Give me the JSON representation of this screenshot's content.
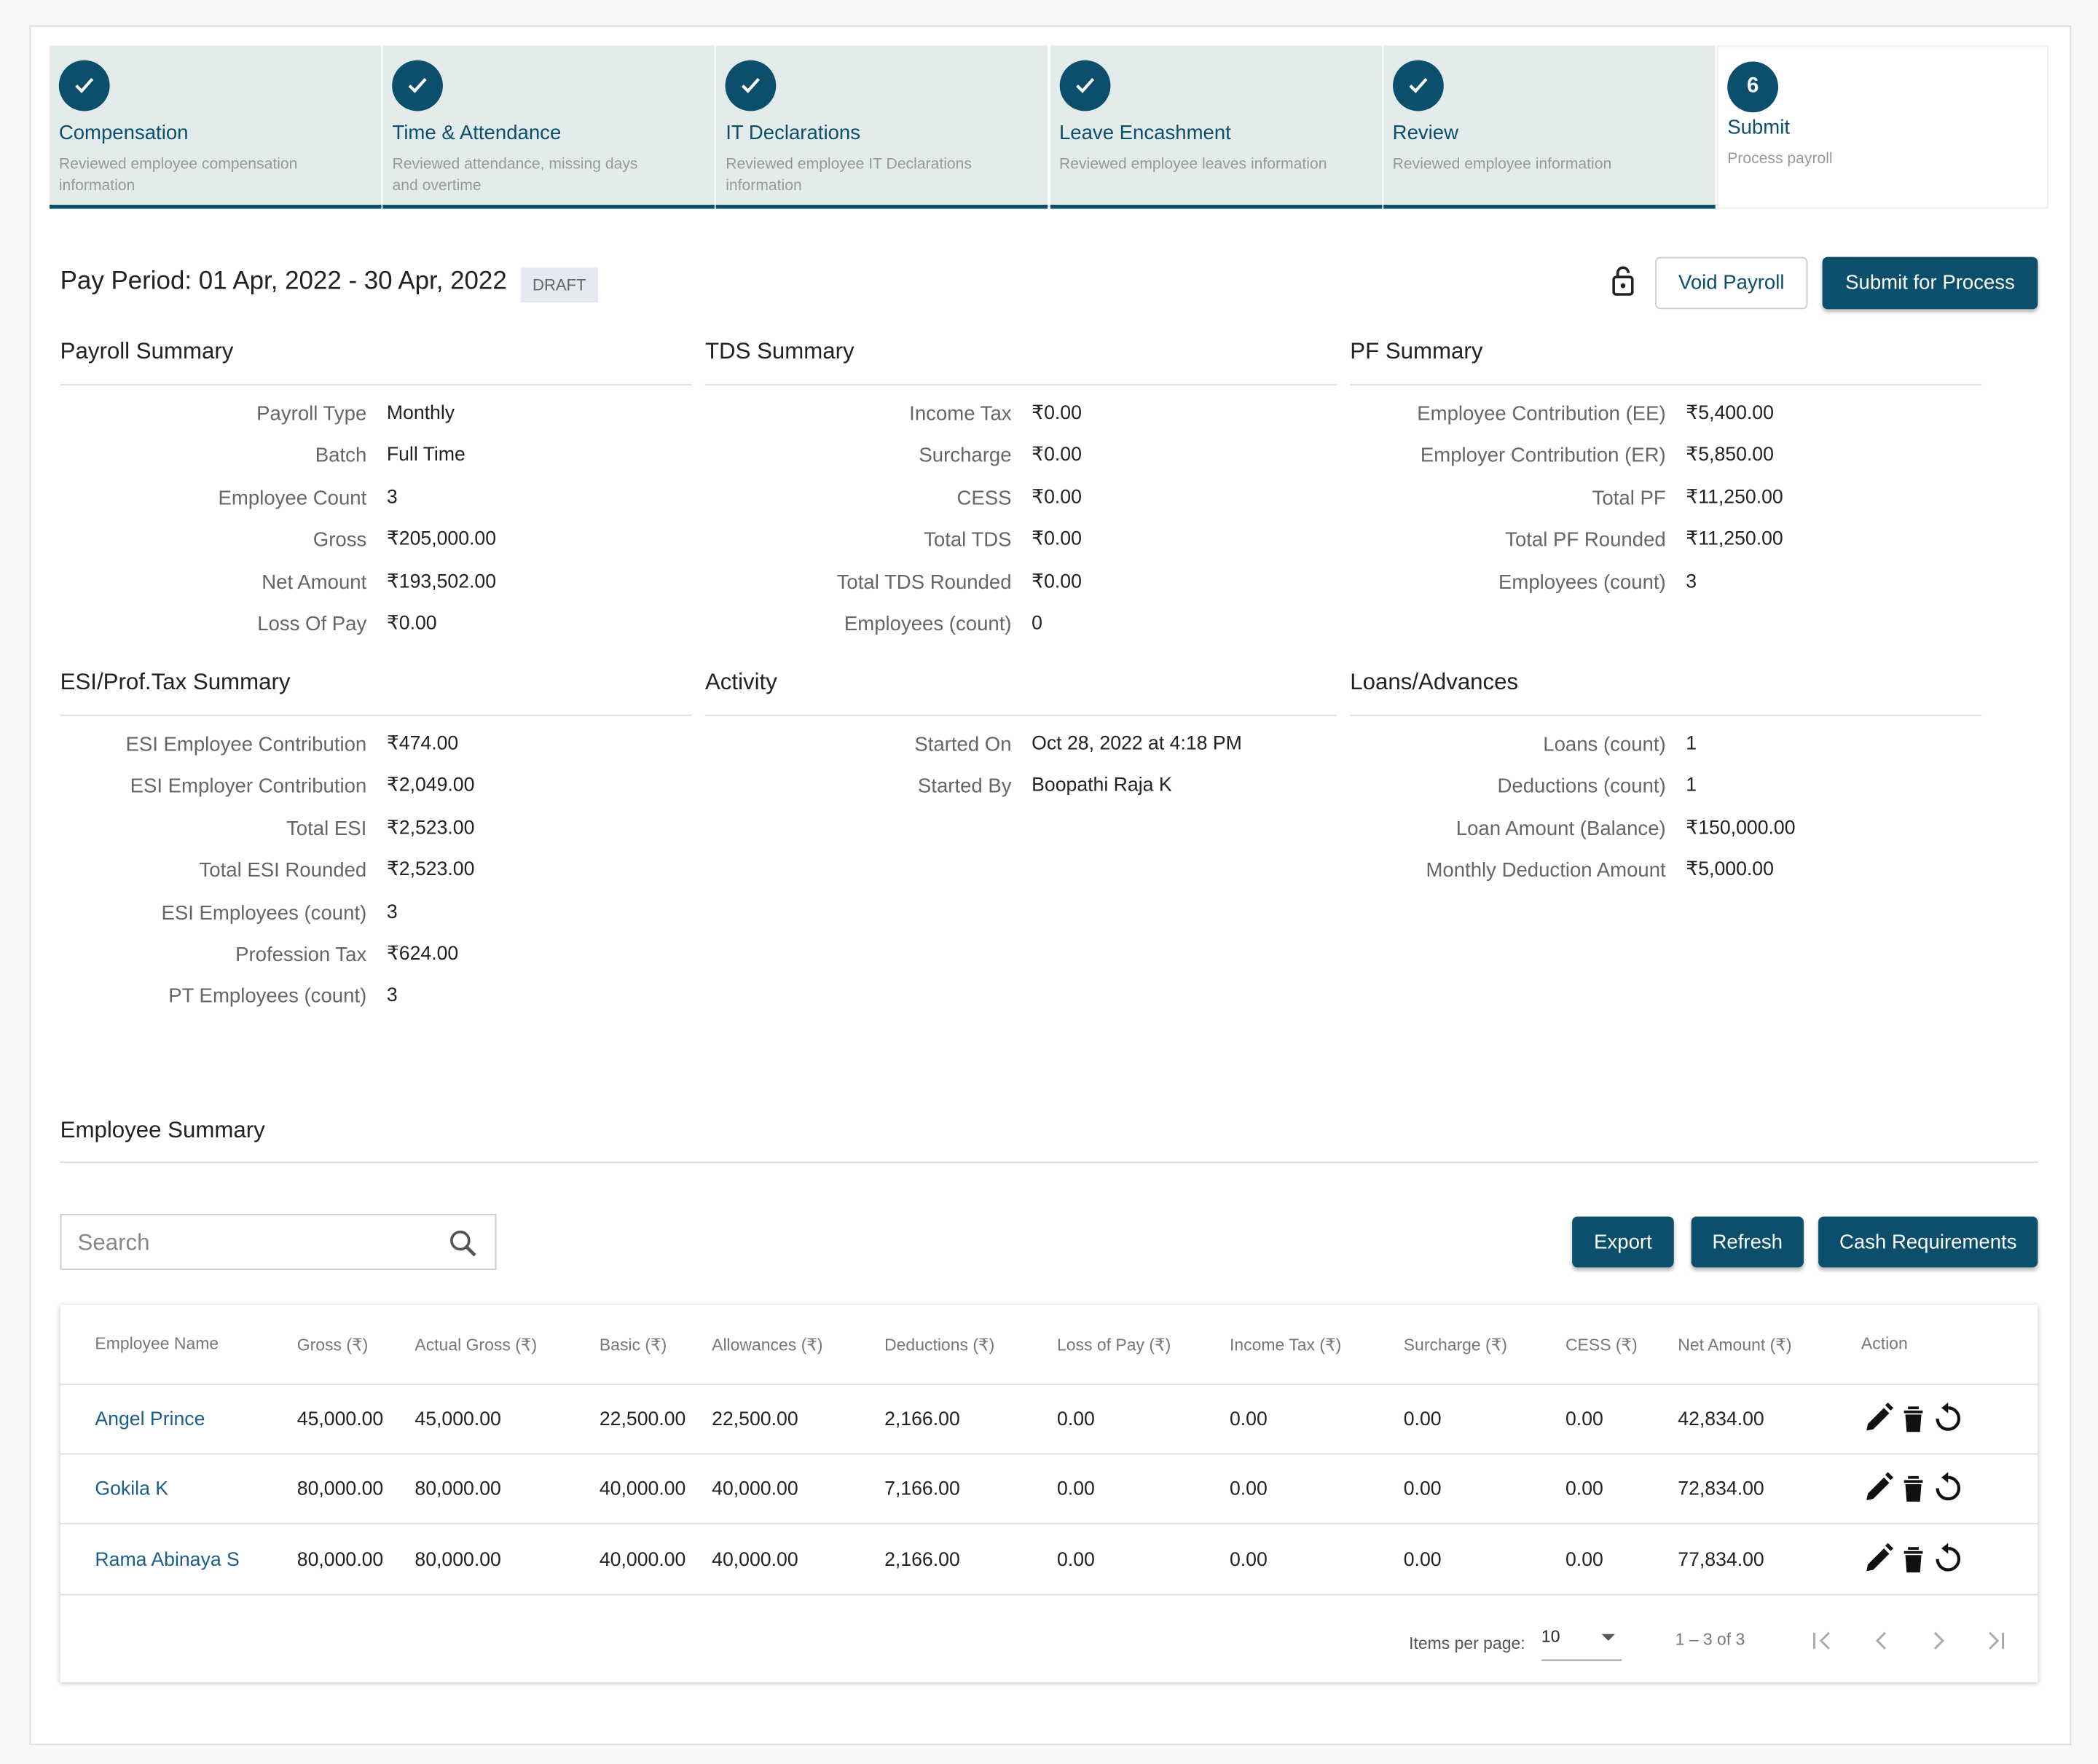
{
  "steps": [
    {
      "label": "Compensation",
      "description": "Reviewed employee compensation information",
      "completed": true
    },
    {
      "label": "Time & Attendance",
      "description": "Reviewed attendance, missing days and overtime",
      "completed": true
    },
    {
      "label": "IT Declarations",
      "description": "Reviewed employee IT Declarations information",
      "completed": true
    },
    {
      "label": "Leave Encashment",
      "description": "Reviewed employee leaves information",
      "completed": true
    },
    {
      "label": "Review",
      "description": "Reviewed employee information",
      "completed": true
    },
    {
      "label": "Submit",
      "description": "Process payroll",
      "completed": false,
      "marker": "6"
    }
  ],
  "header": {
    "pay_period": "Pay Period: 01 Apr, 2022 - 30 Apr, 2022",
    "status": "DRAFT",
    "buttons": [
      "Void Payroll",
      "Submit for Process"
    ]
  },
  "sections": [
    {
      "title": "Payroll Summary",
      "rows": [
        [
          "Payroll Type",
          "Monthly"
        ],
        [
          "Batch",
          "Full Time"
        ],
        [
          "Employee Count",
          "3"
        ],
        [
          "Gross",
          "₹205,000.00"
        ],
        [
          "Net Amount",
          "₹193,502.00"
        ],
        [
          "Loss Of Pay",
          "₹0.00"
        ]
      ]
    },
    {
      "title": "TDS Summary",
      "rows": [
        [
          "Income Tax",
          "₹0.00"
        ],
        [
          "Surcharge",
          "₹0.00"
        ],
        [
          "CESS",
          "₹0.00"
        ],
        [
          "Total TDS",
          "₹0.00"
        ],
        [
          "Total TDS Rounded",
          "₹0.00"
        ],
        [
          "Employees (count)",
          "0"
        ]
      ]
    },
    {
      "title": "PF Summary",
      "rows": [
        [
          "Employee Contribution (EE)",
          "₹5,400.00"
        ],
        [
          "Employer Contribution (ER)",
          "₹5,850.00"
        ],
        [
          "Total PF",
          "₹11,250.00"
        ],
        [
          "Total PF Rounded",
          "₹11,250.00"
        ],
        [
          "Employees (count)",
          "3"
        ]
      ]
    },
    {
      "title": "ESI/Prof.Tax Summary",
      "rows": [
        [
          "ESI Employee Contribution",
          "₹474.00"
        ],
        [
          "ESI Employer Contribution",
          "₹2,049.00"
        ],
        [
          "Total ESI",
          "₹2,523.00"
        ],
        [
          "Total ESI Rounded",
          "₹2,523.00"
        ],
        [
          "ESI Employees (count)",
          "3"
        ],
        [
          "Profession Tax",
          "₹624.00"
        ],
        [
          "PT Employees (count)",
          "3"
        ]
      ]
    },
    {
      "title": "Activity",
      "rows": [
        [
          "Started On",
          "Oct 28, 2022 at 4:18 PM"
        ],
        [
          "Started By",
          "Boopathi Raja K"
        ]
      ]
    },
    {
      "title": "Loans/Advances",
      "rows": [
        [
          "Loans (count)",
          "1"
        ],
        [
          "Deductions (count)",
          "1"
        ],
        [
          "Loan Amount (Balance)",
          "₹150,000.00"
        ],
        [
          "Monthly Deduction Amount",
          "₹5,000.00"
        ]
      ]
    }
  ],
  "employee_summary": {
    "title": "Employee Summary",
    "search_placeholder": "Search",
    "buttons": [
      "Export",
      "Refresh",
      "Cash Requirements"
    ],
    "columns": [
      "Employee Name",
      "Gross (₹)",
      "Actual Gross (₹)",
      "Basic (₹)",
      "Allowances (₹)",
      "Deductions (₹)",
      "Loss of Pay (₹)",
      "Income Tax (₹)",
      "Surcharge (₹)",
      "CESS (₹)",
      "Net Amount (₹)",
      "Action"
    ],
    "rows": [
      [
        "Angel Prince",
        "45,000.00",
        "45,000.00",
        "22,500.00",
        "22,500.00",
        "2,166.00",
        "0.00",
        "0.00",
        "0.00",
        "0.00",
        "42,834.00"
      ],
      [
        "Gokila K",
        "80,000.00",
        "80,000.00",
        "40,000.00",
        "40,000.00",
        "7,166.00",
        "0.00",
        "0.00",
        "0.00",
        "0.00",
        "72,834.00"
      ],
      [
        "Rama Abinaya S",
        "80,000.00",
        "80,000.00",
        "40,000.00",
        "40,000.00",
        "2,166.00",
        "0.00",
        "0.00",
        "0.00",
        "0.00",
        "77,834.00"
      ]
    ],
    "pagination": {
      "items_per_page_label": "Items per page:",
      "items_per_page": "10",
      "range": "1 – 3 of 3"
    }
  }
}
